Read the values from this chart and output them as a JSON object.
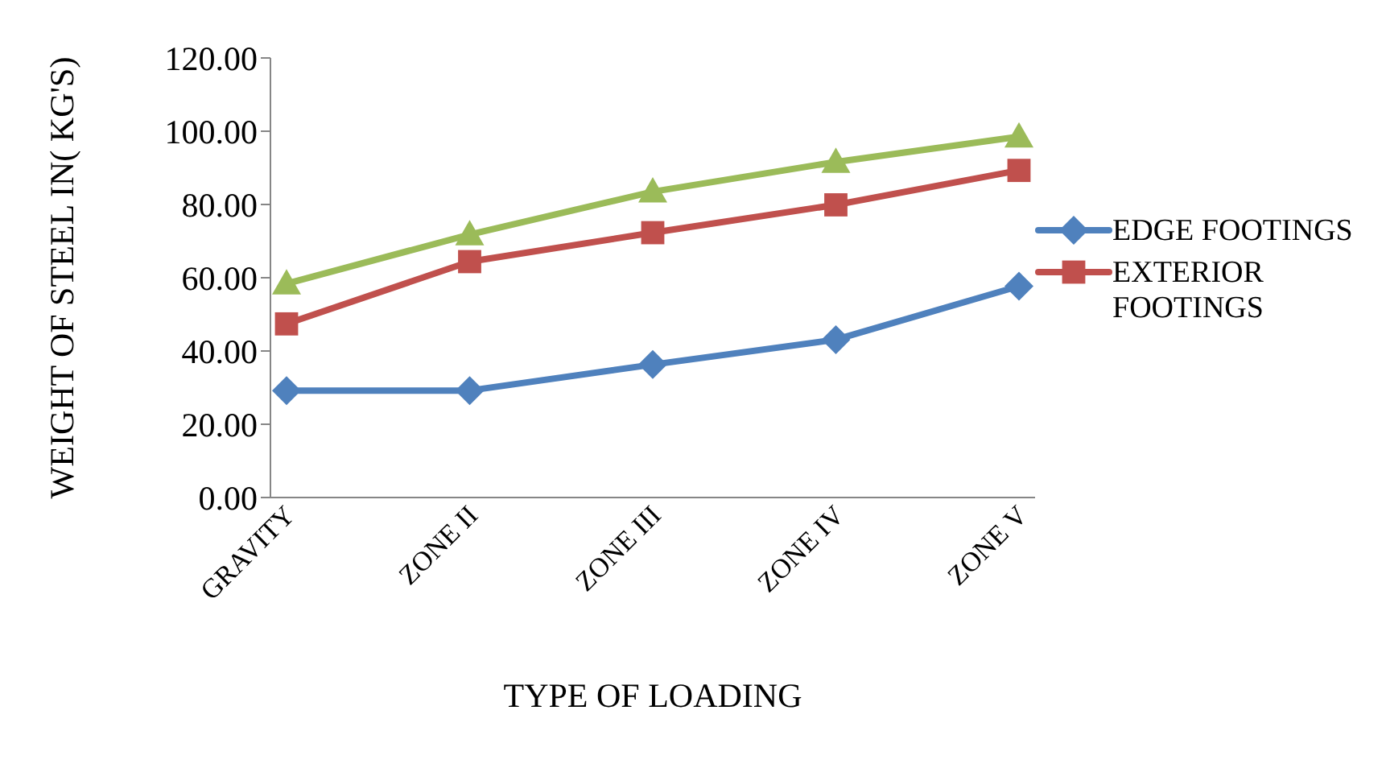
{
  "chart_data": {
    "type": "line",
    "xlabel": "TYPE OF LOADING",
    "ylabel": "WEIGHT OF STEEL IN( KG'S)",
    "categories": [
      "GRAVITY",
      "ZONE II",
      "ZONE III",
      "ZONE IV",
      "ZONE V"
    ],
    "series": [
      {
        "name": "EDGE FOOTINGS",
        "color": "#4f81bd",
        "marker": "diamond",
        "values": [
          29.2,
          29.2,
          36.3,
          43.1,
          57.7
        ]
      },
      {
        "name": "EXTERIOR FOOTINGS",
        "color": "#c0504d",
        "marker": "square",
        "values": [
          47.4,
          64.4,
          72.3,
          79.9,
          89.3
        ]
      },
      {
        "color": "#9bbb59",
        "marker": "triangle",
        "values": [
          58.4,
          71.8,
          83.5,
          91.6,
          98.5
        ]
      }
    ],
    "ylim": [
      0,
      120
    ],
    "yticks": [
      {
        "value": 0,
        "label": "0.00"
      },
      {
        "value": 20,
        "label": "20.00"
      },
      {
        "value": 40,
        "label": "40.00"
      },
      {
        "value": 60,
        "label": "60.00"
      },
      {
        "value": 80,
        "label": "80.00"
      },
      {
        "value": 100,
        "label": "100.00"
      },
      {
        "value": 120,
        "label": "120.00"
      }
    ],
    "grid": false,
    "legend": "right"
  }
}
